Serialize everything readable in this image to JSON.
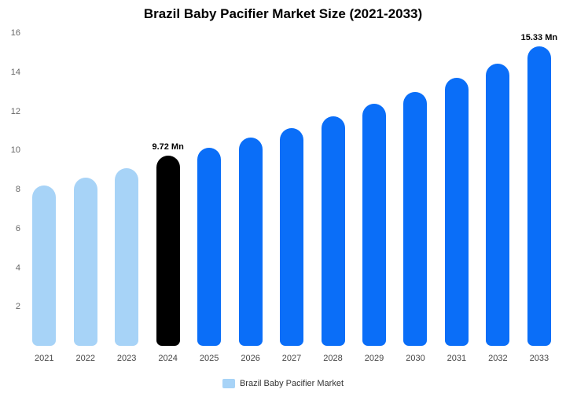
{
  "title": "Brazil Baby Pacifier Market Size (2021-2033)",
  "legend": {
    "label": "Brazil Baby Pacifier Market",
    "swatch_color": "#a7d3f7"
  },
  "colors": {
    "light_blue": "#a7d3f7",
    "bright_blue": "#0a6ef8",
    "highlight_black": "#000000"
  },
  "chart_data": {
    "type": "bar",
    "title": "Brazil Baby Pacifier Market Size (2021-2033)",
    "xlabel": "",
    "ylabel": "",
    "unit": "Mn",
    "categories": [
      "2021",
      "2022",
      "2023",
      "2024",
      "2025",
      "2026",
      "2027",
      "2028",
      "2029",
      "2030",
      "2031",
      "2032",
      "2033"
    ],
    "values": [
      8.2,
      8.6,
      9.1,
      9.72,
      10.15,
      10.65,
      11.15,
      11.75,
      12.4,
      13.0,
      13.7,
      14.45,
      15.33
    ],
    "bar_colors": [
      "#a7d3f7",
      "#a7d3f7",
      "#a7d3f7",
      "#000000",
      "#0a6ef8",
      "#0a6ef8",
      "#0a6ef8",
      "#0a6ef8",
      "#0a6ef8",
      "#0a6ef8",
      "#0a6ef8",
      "#0a6ef8",
      "#0a6ef8"
    ],
    "point_labels": [
      null,
      null,
      null,
      "9.72 Mn",
      null,
      null,
      null,
      null,
      null,
      null,
      null,
      null,
      "15.33 Mn"
    ],
    "y_ticks": [
      2,
      4,
      6,
      8,
      10,
      12,
      14,
      16
    ],
    "ylim": [
      0,
      16
    ],
    "grid": false,
    "legend_position": "bottom",
    "legend_entries": [
      "Brazil Baby Pacifier Market"
    ]
  }
}
